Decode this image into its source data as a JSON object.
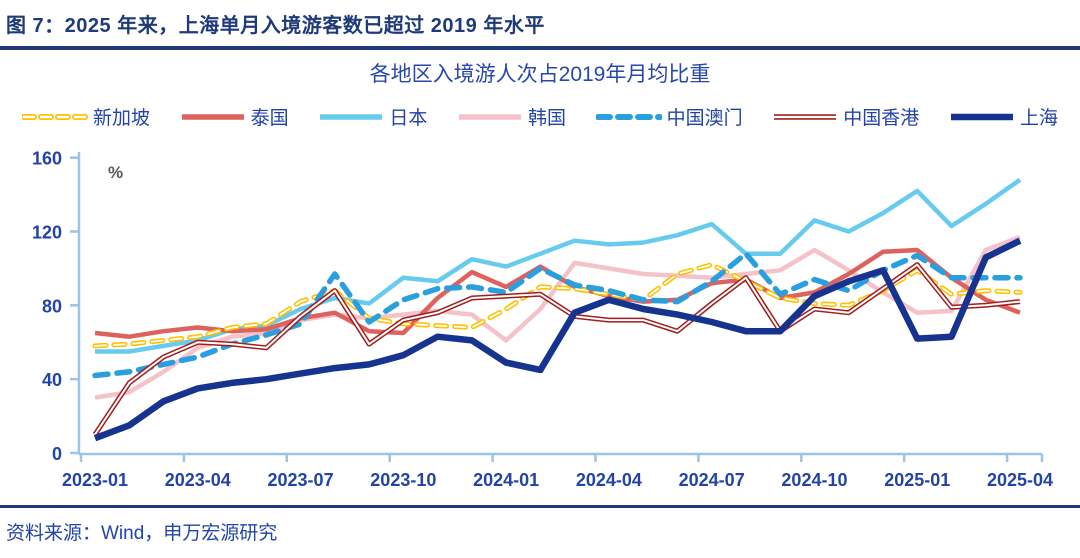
{
  "figure": {
    "caption": "图 7：2025 年来，上海单月入境游客数已超过 2019 年水平",
    "source": "资料来源：Wind，申万宏源研究"
  },
  "colors": {
    "header_navy": "#1e3a78",
    "text_blue": "#2343a6",
    "axis_line_blue": "#9dc3e6",
    "percent_gray": "#595959"
  },
  "chart_data": {
    "type": "line",
    "title": "各地区入境游人次占2019年月均比重",
    "unit_label": "%",
    "ylim": [
      0,
      160
    ],
    "yticks": [
      0,
      40,
      80,
      120,
      160
    ],
    "grid": false,
    "legend_position": "top",
    "x_tick_labels": [
      "2023-01",
      "2023-04",
      "2023-07",
      "2023-10",
      "2024-01",
      "2024-04",
      "2024-07",
      "2024-10",
      "2025-01",
      "2025-04"
    ],
    "categories": [
      "2023-01",
      "2023-02",
      "2023-03",
      "2023-04",
      "2023-05",
      "2023-06",
      "2023-07",
      "2023-08",
      "2023-09",
      "2023-10",
      "2023-11",
      "2023-12",
      "2024-01",
      "2024-02",
      "2024-03",
      "2024-04",
      "2024-05",
      "2024-06",
      "2024-07",
      "2024-08",
      "2024-09",
      "2024-10",
      "2024-11",
      "2024-12",
      "2025-01",
      "2025-02",
      "2025-03",
      "2025-04"
    ],
    "series": [
      {
        "name": "新加坡",
        "key": "singapore",
        "color": "#ffc000",
        "style": "dashed-hollow",
        "values": [
          58,
          59,
          61,
          63,
          68,
          70,
          82,
          88,
          73,
          70,
          69,
          68,
          78,
          90,
          89,
          86,
          83,
          97,
          102,
          93,
          84,
          81,
          80,
          88,
          99,
          86,
          88,
          87
        ]
      },
      {
        "name": "泰国",
        "key": "thailand",
        "color": "#dd625e",
        "style": "solid",
        "values": [
          65,
          63,
          66,
          68,
          66,
          67,
          73,
          76,
          66,
          65,
          84,
          98,
          90,
          101,
          90,
          85,
          82,
          83,
          92,
          94,
          84,
          87,
          97,
          109,
          110,
          95,
          83,
          76
        ]
      },
      {
        "name": "日本",
        "key": "japan",
        "color": "#67cbf0",
        "style": "solid",
        "values": [
          55,
          55,
          58,
          61,
          67,
          69,
          78,
          84,
          81,
          95,
          93,
          105,
          101,
          108,
          115,
          113,
          114,
          118,
          124,
          108,
          108,
          126,
          120,
          130,
          142,
          123,
          135,
          148
        ]
      },
      {
        "name": "韩国",
        "key": "korea",
        "color": "#f5c2ca",
        "style": "solid",
        "values": [
          30,
          33,
          44,
          57,
          63,
          65,
          72,
          75,
          73,
          75,
          77,
          75,
          61,
          78,
          103,
          100,
          97,
          96,
          95,
          97,
          99,
          110,
          99,
          87,
          76,
          77,
          110,
          117
        ]
      },
      {
        "name": "中国澳门",
        "key": "macau",
        "color": "#2b9fde",
        "style": "dashed",
        "values": [
          42,
          44,
          48,
          52,
          59,
          64,
          70,
          97,
          71,
          83,
          89,
          90,
          87,
          100,
          91,
          88,
          83,
          82,
          93,
          108,
          86,
          94,
          88,
          99,
          107,
          95,
          95,
          95
        ]
      },
      {
        "name": "中国香港",
        "key": "hongkong",
        "color": "#a11d1d",
        "style": "double",
        "values": [
          10,
          38,
          52,
          60,
          59,
          57,
          74,
          88,
          59,
          72,
          76,
          84,
          85,
          86,
          74,
          72,
          72,
          66,
          81,
          95,
          66,
          78,
          76,
          89,
          102,
          79,
          80,
          82
        ]
      },
      {
        "name": "上海",
        "key": "shanghai",
        "color": "#16348f",
        "style": "solid-thick",
        "values": [
          8,
          15,
          28,
          35,
          38,
          40,
          43,
          46,
          48,
          53,
          63,
          61,
          49,
          45,
          76,
          83,
          78,
          75,
          71,
          66,
          66,
          85,
          93,
          99,
          62,
          63,
          106,
          115
        ]
      }
    ]
  }
}
